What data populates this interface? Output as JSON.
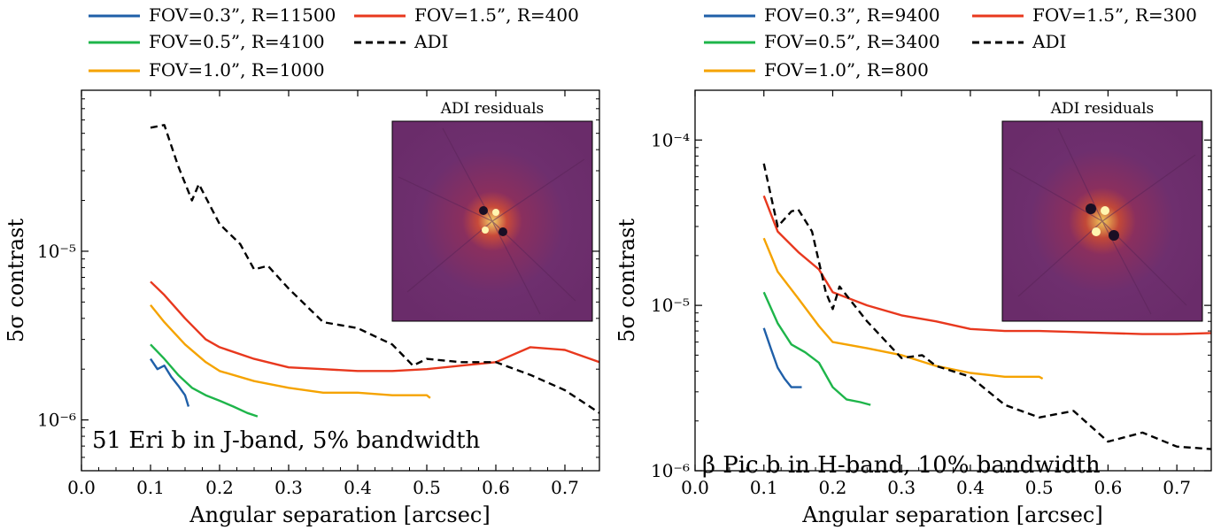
{
  "chart_data": [
    {
      "type": "line",
      "xlabel": "Angular separation [arcsec]",
      "ylabel": "5σ contrast",
      "xlim": [
        0.0,
        0.75
      ],
      "ylim": [
        5e-07,
        9e-05
      ],
      "yscale": "log",
      "xticks": [
        "0.0",
        "0.1",
        "0.2",
        "0.3",
        "0.4",
        "0.5",
        "0.6",
        "0.7"
      ],
      "ytick_labels": [
        {
          "value": 1e-06,
          "label": "10⁻⁶"
        },
        {
          "value": 1e-05,
          "label": "10⁻⁵"
        }
      ],
      "annotation": "51 Eri b in J-band, 5% bandwidth",
      "inset_title": "ADI residuals",
      "legend_placement": "above",
      "series": [
        {
          "name": "FOV=0.3”, R=11500",
          "color": "#1f5fa8",
          "style": "solid",
          "x": [
            0.1,
            0.11,
            0.12,
            0.13,
            0.14,
            0.15,
            0.155
          ],
          "y": [
            2.3e-06,
            2e-06,
            2.1e-06,
            1.8e-06,
            1.6e-06,
            1.4e-06,
            1.2e-06
          ]
        },
        {
          "name": "FOV=0.5”, R=4100",
          "color": "#1eb54a",
          "style": "solid",
          "x": [
            0.1,
            0.12,
            0.14,
            0.16,
            0.18,
            0.2,
            0.22,
            0.24,
            0.255
          ],
          "y": [
            2.8e-06,
            2.3e-06,
            1.85e-06,
            1.55e-06,
            1.4e-06,
            1.3e-06,
            1.2e-06,
            1.1e-06,
            1.05e-06
          ]
        },
        {
          "name": "FOV=1.0”, R=1000",
          "color": "#f5a300",
          "style": "solid",
          "x": [
            0.1,
            0.12,
            0.15,
            0.18,
            0.2,
            0.25,
            0.3,
            0.35,
            0.4,
            0.45,
            0.5,
            0.505
          ],
          "y": [
            4.8e-06,
            3.8e-06,
            2.8e-06,
            2.2e-06,
            1.95e-06,
            1.7e-06,
            1.55e-06,
            1.45e-06,
            1.45e-06,
            1.4e-06,
            1.4e-06,
            1.35e-06
          ]
        },
        {
          "name": "FOV=1.5”, R=400",
          "color": "#e8381e",
          "style": "solid",
          "x": [
            0.1,
            0.12,
            0.15,
            0.18,
            0.2,
            0.25,
            0.3,
            0.35,
            0.4,
            0.45,
            0.5,
            0.55,
            0.6,
            0.65,
            0.7,
            0.75
          ],
          "y": [
            6.6e-06,
            5.5e-06,
            4e-06,
            3e-06,
            2.7e-06,
            2.3e-06,
            2.05e-06,
            2e-06,
            1.95e-06,
            1.95e-06,
            2e-06,
            2.1e-06,
            2.2e-06,
            2.7e-06,
            2.6e-06,
            2.2e-06
          ]
        },
        {
          "name": "ADI",
          "color": "#000000",
          "style": "dashed",
          "x": [
            0.1,
            0.12,
            0.14,
            0.16,
            0.17,
            0.2,
            0.23,
            0.25,
            0.27,
            0.3,
            0.35,
            0.4,
            0.45,
            0.48,
            0.5,
            0.55,
            0.6,
            0.65,
            0.7,
            0.75
          ],
          "y": [
            5.4e-05,
            5.6e-05,
            3.2e-05,
            2e-05,
            2.5e-05,
            1.45e-05,
            1.1e-05,
            7.8e-06,
            8.2e-06,
            6e-06,
            3.8e-06,
            3.5e-06,
            2.8e-06,
            2.1e-06,
            2.3e-06,
            2.2e-06,
            2.2e-06,
            1.85e-06,
            1.5e-06,
            1.1e-06
          ]
        }
      ]
    },
    {
      "type": "line",
      "xlabel": "Angular separation [arcsec]",
      "ylabel": "5σ contrast",
      "xlim": [
        0.0,
        0.75
      ],
      "ylim": [
        1e-06,
        0.0002
      ],
      "yscale": "log",
      "xticks": [
        "0.0",
        "0.1",
        "0.2",
        "0.3",
        "0.4",
        "0.5",
        "0.6",
        "0.7"
      ],
      "ytick_labels": [
        {
          "value": 1e-06,
          "label": "10⁻⁶"
        },
        {
          "value": 1e-05,
          "label": "10⁻⁵"
        },
        {
          "value": 0.0001,
          "label": "10⁻⁴"
        }
      ],
      "annotation": "β Pic b in H-band, 10% bandwidth",
      "inset_title": "ADI residuals",
      "legend_placement": "above",
      "series": [
        {
          "name": "FOV=0.3”, R=9400",
          "color": "#1f5fa8",
          "style": "solid",
          "x": [
            0.1,
            0.11,
            0.12,
            0.13,
            0.14,
            0.15,
            0.155
          ],
          "y": [
            7.3e-06,
            5.5e-06,
            4.2e-06,
            3.6e-06,
            3.2e-06,
            3.2e-06,
            3.2e-06
          ]
        },
        {
          "name": "FOV=0.5”, R=3400",
          "color": "#1eb54a",
          "style": "solid",
          "x": [
            0.1,
            0.12,
            0.14,
            0.16,
            0.18,
            0.2,
            0.22,
            0.24,
            0.255
          ],
          "y": [
            1.2e-05,
            7.8e-06,
            5.8e-06,
            5.2e-06,
            4.5e-06,
            3.2e-06,
            2.7e-06,
            2.6e-06,
            2.5e-06
          ]
        },
        {
          "name": "FOV=1.0”, R=800",
          "color": "#f5a300",
          "style": "solid",
          "x": [
            0.1,
            0.12,
            0.15,
            0.18,
            0.2,
            0.25,
            0.3,
            0.35,
            0.4,
            0.45,
            0.5,
            0.505
          ],
          "y": [
            2.55e-05,
            1.6e-05,
            1.1e-05,
            7.5e-06,
            6e-06,
            5.5e-06,
            5e-06,
            4.3e-06,
            3.9e-06,
            3.7e-06,
            3.7e-06,
            3.6e-06
          ]
        },
        {
          "name": "FOV=1.5”, R=300",
          "color": "#e8381e",
          "style": "solid",
          "x": [
            0.1,
            0.12,
            0.15,
            0.18,
            0.2,
            0.25,
            0.3,
            0.35,
            0.4,
            0.45,
            0.5,
            0.55,
            0.6,
            0.65,
            0.7,
            0.75
          ],
          "y": [
            4.6e-05,
            2.8e-05,
            2.1e-05,
            1.65e-05,
            1.2e-05,
            1e-05,
            8.7e-06,
            8e-06,
            7.2e-06,
            7e-06,
            7e-06,
            6.9e-06,
            6.8e-06,
            6.7e-06,
            6.7e-06,
            6.8e-06
          ]
        },
        {
          "name": "ADI",
          "color": "#000000",
          "style": "dashed",
          "x": [
            0.1,
            0.12,
            0.14,
            0.15,
            0.17,
            0.19,
            0.2,
            0.21,
            0.25,
            0.3,
            0.33,
            0.35,
            0.4,
            0.45,
            0.5,
            0.55,
            0.6,
            0.65,
            0.7,
            0.75
          ],
          "y": [
            7.2e-05,
            3e-05,
            3.7e-05,
            3.8e-05,
            2.8e-05,
            1.2e-05,
            9.5e-06,
            1.3e-05,
            8e-06,
            4.8e-06,
            5e-06,
            4.3e-06,
            3.7e-06,
            2.5e-06,
            2.1e-06,
            2.3e-06,
            1.5e-06,
            1.7e-06,
            1.4e-06,
            1.35e-06
          ]
        }
      ]
    }
  ]
}
